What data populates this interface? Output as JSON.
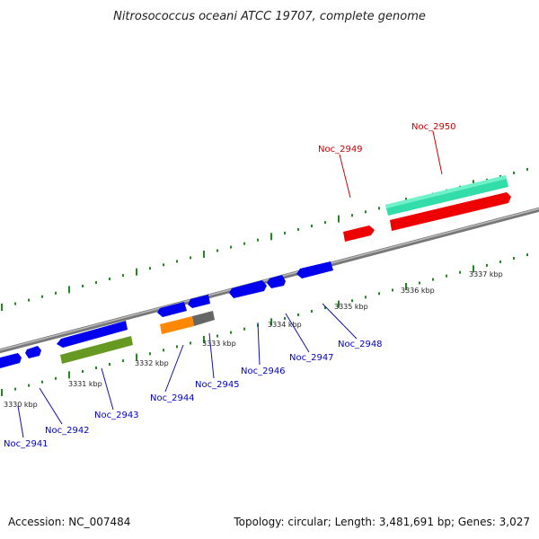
{
  "title": "Nitrosococcus oceani ATCC 19707, complete genome",
  "footer": {
    "accession": "Accession: NC_007484",
    "summary": "Topology: circular; Length: 3,481,691 bp; Genes: 3,027"
  },
  "scale_labels": [
    "3330 kbp",
    "3331 kbp",
    "3332 kbp",
    "3333 kbp",
    "3334 kbp",
    "3335 kbp",
    "3336 kbp",
    "3337 kbp"
  ],
  "genes": [
    {
      "label": "Noc_2941",
      "color": "#0000ee"
    },
    {
      "label": "Noc_2942",
      "color": "#0000ee"
    },
    {
      "label": "Noc_2943",
      "color": "#0000ee"
    },
    {
      "label": "Noc_2944",
      "color": "#0000ee"
    },
    {
      "label": "Noc_2945",
      "color": "#0000ee"
    },
    {
      "label": "Noc_2946",
      "color": "#0000ee"
    },
    {
      "label": "Noc_2947",
      "color": "#0000ee"
    },
    {
      "label": "Noc_2948",
      "color": "#0000ee"
    },
    {
      "label": "Noc_2949",
      "color": "#dd0000"
    },
    {
      "label": "Noc_2950",
      "color": "#dd0000"
    }
  ],
  "colors": {
    "forward_gene": "#0000ee",
    "reverse_gene": "#0000ee",
    "rrna": "#ee0000",
    "rrna_product": "#33ddaa",
    "cds_orange": "#ff8800",
    "cds_grey": "#777777",
    "cds_green": "#669922",
    "tick": "#228822",
    "backbone": "#808080"
  }
}
